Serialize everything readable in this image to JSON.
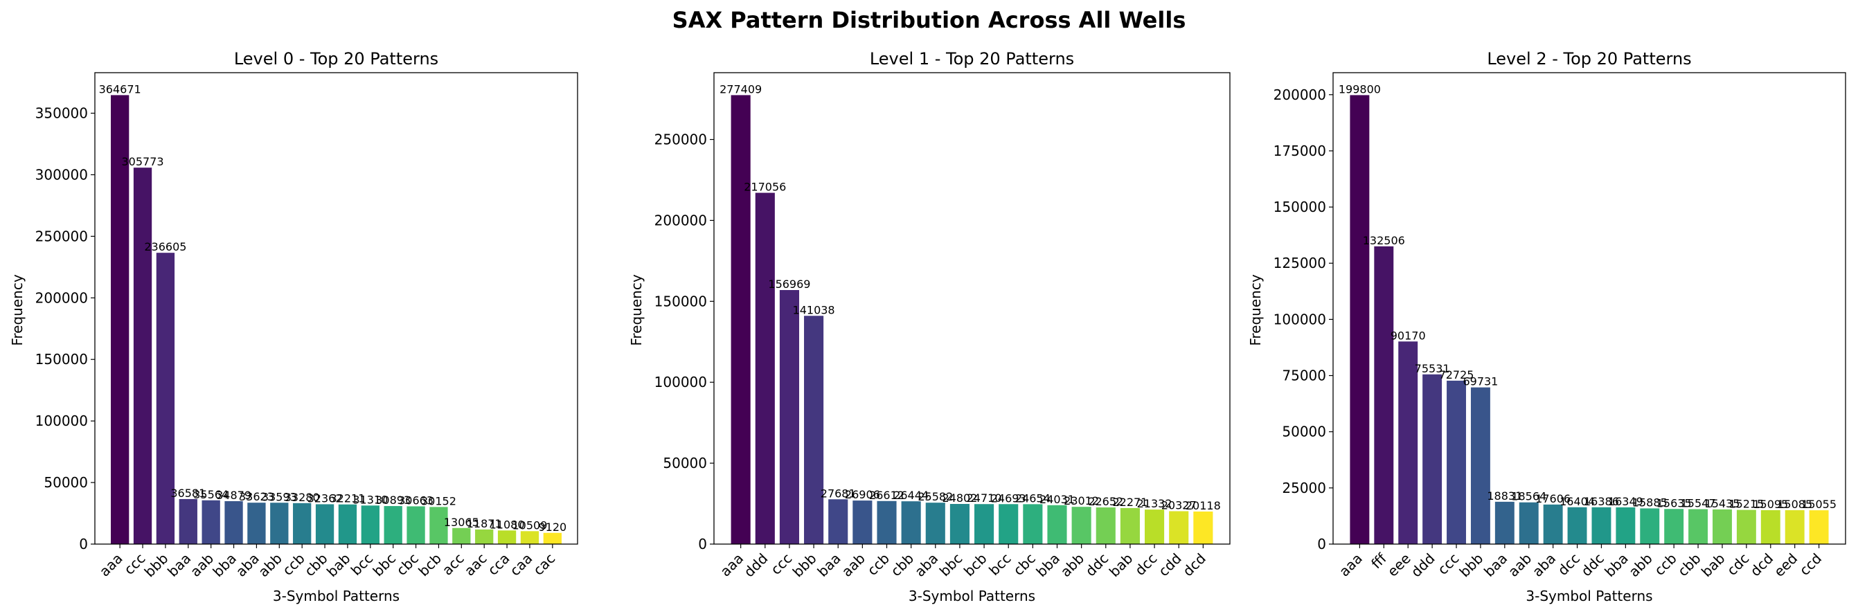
{
  "figure": {
    "title": "SAX Pattern Distribution Across All Wells"
  },
  "chart_data": [
    {
      "type": "bar",
      "title": "Level 0 - Top 20 Patterns",
      "xlabel": "3-Symbol Patterns",
      "ylabel": "Frequency",
      "ylim": [
        0,
        382904
      ],
      "yticks": [
        0,
        50000,
        100000,
        150000,
        200000,
        250000,
        300000,
        350000
      ],
      "categories": [
        "aaa",
        "ccc",
        "bbb",
        "baa",
        "aab",
        "bba",
        "aba",
        "abb",
        "ccb",
        "cbb",
        "bab",
        "bcc",
        "bbc",
        "cbc",
        "bcb",
        "acc",
        "aac",
        "cca",
        "caa",
        "cac"
      ],
      "values": [
        364671,
        305773,
        236605,
        36581,
        35564,
        34879,
        33623,
        33593,
        33280,
        32362,
        32211,
        31310,
        30893,
        30663,
        30152,
        13065,
        11871,
        11080,
        10509,
        9120
      ],
      "colormap": "viridis",
      "grid": false
    },
    {
      "type": "bar",
      "title": "Level 1 - Top 20 Patterns",
      "xlabel": "3-Symbol Patterns",
      "ylabel": "Frequency",
      "ylim": [
        0,
        291279
      ],
      "yticks": [
        0,
        50000,
        100000,
        150000,
        200000,
        250000
      ],
      "categories": [
        "aaa",
        "ddd",
        "ccc",
        "bbb",
        "baa",
        "aab",
        "ccb",
        "cbb",
        "aba",
        "bbc",
        "bcb",
        "bcc",
        "cbc",
        "bba",
        "abb",
        "ddc",
        "bab",
        "dcc",
        "cdd",
        "dcd"
      ],
      "values": [
        277409,
        217056,
        156969,
        141038,
        27681,
        26906,
        26612,
        26444,
        25582,
        24802,
        24710,
        24693,
        24654,
        24031,
        23012,
        22652,
        22271,
        21332,
        20327,
        20118
      ],
      "colormap": "viridis",
      "grid": false
    },
    {
      "type": "bar",
      "title": "Level 2 - Top 20 Patterns",
      "xlabel": "3-Symbol Patterns",
      "ylabel": "Frequency",
      "ylim": [
        0,
        209790
      ],
      "yticks": [
        0,
        25000,
        50000,
        75000,
        100000,
        125000,
        150000,
        175000,
        200000
      ],
      "categories": [
        "aaa",
        "fff",
        "eee",
        "ddd",
        "ccc",
        "bbb",
        "baa",
        "aab",
        "aba",
        "dcc",
        "ddc",
        "bba",
        "abb",
        "ccb",
        "cbb",
        "bab",
        "cdc",
        "dcd",
        "eed",
        "ccd"
      ],
      "values": [
        199800,
        132506,
        90170,
        75531,
        72725,
        69731,
        18831,
        18564,
        17606,
        16404,
        16386,
        16349,
        15885,
        15635,
        15547,
        15435,
        15215,
        15095,
        15085,
        15055
      ],
      "colormap": "viridis",
      "grid": false
    }
  ]
}
